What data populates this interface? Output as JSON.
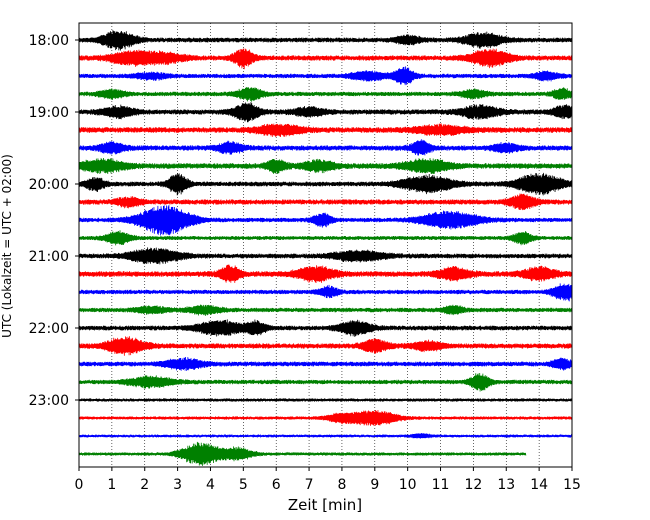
{
  "chart_data": {
    "type": "line",
    "subtype": "helicorder",
    "xlabel": "Zeit  [min]",
    "ylabel": "UTC (Lokalzeit = UTC + 02:00)",
    "xlim": [
      0,
      15
    ],
    "xticks": [
      "0",
      "1",
      "2",
      "3",
      "4",
      "5",
      "6",
      "7",
      "8",
      "9",
      "10",
      "11",
      "12",
      "13",
      "14",
      "15"
    ],
    "yticks": [
      "18:00",
      "19:00",
      "20:00",
      "21:00",
      "22:00",
      "23:00"
    ],
    "grid": "vertical-dotted",
    "traces_per_hour": 4,
    "colors": [
      "#000000",
      "#ff0000",
      "#0000ff",
      "#008000"
    ],
    "traces": [
      {
        "start": "18:00",
        "color": "#000000",
        "end_min": 15,
        "noise": 2.4,
        "bursts": [
          [
            1.2,
            0.5,
            9
          ],
          [
            10,
            0.4,
            4
          ],
          [
            12.3,
            0.6,
            7
          ]
        ]
      },
      {
        "start": "18:15",
        "color": "#ff0000",
        "end_min": 15,
        "noise": 2.6,
        "bursts": [
          [
            1.5,
            0.6,
            6
          ],
          [
            2.5,
            0.7,
            5
          ],
          [
            5,
            0.3,
            9
          ],
          [
            12.5,
            0.6,
            8
          ]
        ]
      },
      {
        "start": "18:30",
        "color": "#0000ff",
        "end_min": 15,
        "noise": 2.2,
        "bursts": [
          [
            2.2,
            0.5,
            3
          ],
          [
            8.8,
            0.6,
            4
          ],
          [
            9.9,
            0.3,
            8
          ],
          [
            14.2,
            0.4,
            4
          ]
        ]
      },
      {
        "start": "18:45",
        "color": "#008000",
        "end_min": 15,
        "noise": 2.2,
        "bursts": [
          [
            1,
            0.4,
            4
          ],
          [
            5.2,
            0.4,
            6
          ],
          [
            12,
            0.4,
            4
          ],
          [
            14.7,
            0.3,
            5
          ]
        ]
      },
      {
        "start": "19:00",
        "color": "#000000",
        "end_min": 15,
        "noise": 2.6,
        "bursts": [
          [
            1.2,
            0.5,
            5
          ],
          [
            5.1,
            0.4,
            9
          ],
          [
            7,
            0.5,
            4
          ],
          [
            12.2,
            0.6,
            6
          ],
          [
            14.8,
            0.4,
            6
          ]
        ]
      },
      {
        "start": "19:15",
        "color": "#ff0000",
        "end_min": 15,
        "noise": 2.8,
        "bursts": [
          [
            6.1,
            0.7,
            5
          ],
          [
            11,
            0.8,
            4
          ]
        ]
      },
      {
        "start": "19:30",
        "color": "#0000ff",
        "end_min": 15,
        "noise": 2.6,
        "bursts": [
          [
            1,
            0.4,
            5
          ],
          [
            4.6,
            0.4,
            5
          ],
          [
            10.4,
            0.3,
            7
          ],
          [
            13,
            0.4,
            4
          ]
        ]
      },
      {
        "start": "19:45",
        "color": "#008000",
        "end_min": 15,
        "noise": 2.8,
        "bursts": [
          [
            0.7,
            0.7,
            6
          ],
          [
            6,
            0.3,
            6
          ],
          [
            7.3,
            0.5,
            5
          ],
          [
            10.6,
            0.7,
            6
          ]
        ]
      },
      {
        "start": "20:00",
        "color": "#000000",
        "end_min": 15,
        "noise": 2.4,
        "bursts": [
          [
            0.5,
            0.3,
            6
          ],
          [
            3,
            0.3,
            10
          ],
          [
            10.6,
            0.8,
            8
          ],
          [
            14,
            0.7,
            10
          ]
        ]
      },
      {
        "start": "20:15",
        "color": "#ff0000",
        "end_min": 15,
        "noise": 2.6,
        "bursts": [
          [
            1.5,
            0.4,
            4
          ],
          [
            13.5,
            0.4,
            7
          ]
        ]
      },
      {
        "start": "20:30",
        "color": "#0000ff",
        "end_min": 15,
        "noise": 2.2,
        "bursts": [
          [
            2.6,
            0.8,
            14
          ],
          [
            7.4,
            0.3,
            6
          ],
          [
            11.3,
            0.9,
            8
          ]
        ]
      },
      {
        "start": "20:45",
        "color": "#008000",
        "end_min": 15,
        "noise": 2.0,
        "bursts": [
          [
            1.2,
            0.4,
            6
          ],
          [
            13.5,
            0.3,
            6
          ]
        ]
      },
      {
        "start": "21:00",
        "color": "#000000",
        "end_min": 15,
        "noise": 2.4,
        "bursts": [
          [
            2.3,
            0.8,
            7
          ],
          [
            8.5,
            0.8,
            5
          ]
        ]
      },
      {
        "start": "21:15",
        "color": "#ff0000",
        "end_min": 15,
        "noise": 2.8,
        "bursts": [
          [
            4.6,
            0.3,
            8
          ],
          [
            7.2,
            0.6,
            7
          ],
          [
            11.4,
            0.5,
            6
          ],
          [
            14,
            0.5,
            6
          ]
        ]
      },
      {
        "start": "21:30",
        "color": "#0000ff",
        "end_min": 15,
        "noise": 2.2,
        "bursts": [
          [
            7.6,
            0.3,
            5
          ],
          [
            14.8,
            0.4,
            8
          ]
        ]
      },
      {
        "start": "21:45",
        "color": "#008000",
        "end_min": 15,
        "noise": 2.2,
        "bursts": [
          [
            2.2,
            0.5,
            3
          ],
          [
            3.8,
            0.5,
            4
          ],
          [
            11.4,
            0.3,
            4
          ]
        ]
      },
      {
        "start": "22:00",
        "color": "#000000",
        "end_min": 15,
        "noise": 2.4,
        "bursts": [
          [
            4.3,
            0.7,
            7
          ],
          [
            5.4,
            0.3,
            6
          ],
          [
            8.4,
            0.5,
            7
          ]
        ]
      },
      {
        "start": "22:15",
        "color": "#ff0000",
        "end_min": 15,
        "noise": 2.6,
        "bursts": [
          [
            1.4,
            0.6,
            8
          ],
          [
            9,
            0.4,
            6
          ],
          [
            10.6,
            0.5,
            4
          ]
        ]
      },
      {
        "start": "22:30",
        "color": "#0000ff",
        "end_min": 15,
        "noise": 2.4,
        "bursts": [
          [
            3.2,
            0.6,
            5
          ],
          [
            14.7,
            0.3,
            5
          ]
        ]
      },
      {
        "start": "22:45",
        "color": "#008000",
        "end_min": 15,
        "noise": 2.2,
        "bursts": [
          [
            2.2,
            0.7,
            5
          ],
          [
            12.2,
            0.3,
            8
          ]
        ]
      },
      {
        "start": "23:00",
        "color": "#000000",
        "end_min": 15,
        "noise": 1.6,
        "bursts": []
      },
      {
        "start": "23:15",
        "color": "#ff0000",
        "end_min": 15,
        "noise": 1.6,
        "bursts": [
          [
            9,
            0.7,
            7
          ],
          [
            8,
            0.5,
            4
          ]
        ]
      },
      {
        "start": "23:30",
        "color": "#0000ff",
        "end_min": 15,
        "noise": 1.4,
        "bursts": [
          [
            10.4,
            0.3,
            2
          ]
        ]
      },
      {
        "start": "23:45",
        "color": "#008000",
        "end_min": 13.6,
        "noise": 1.6,
        "bursts": [
          [
            3.7,
            0.6,
            11
          ],
          [
            4.8,
            0.5,
            6
          ]
        ]
      }
    ]
  }
}
